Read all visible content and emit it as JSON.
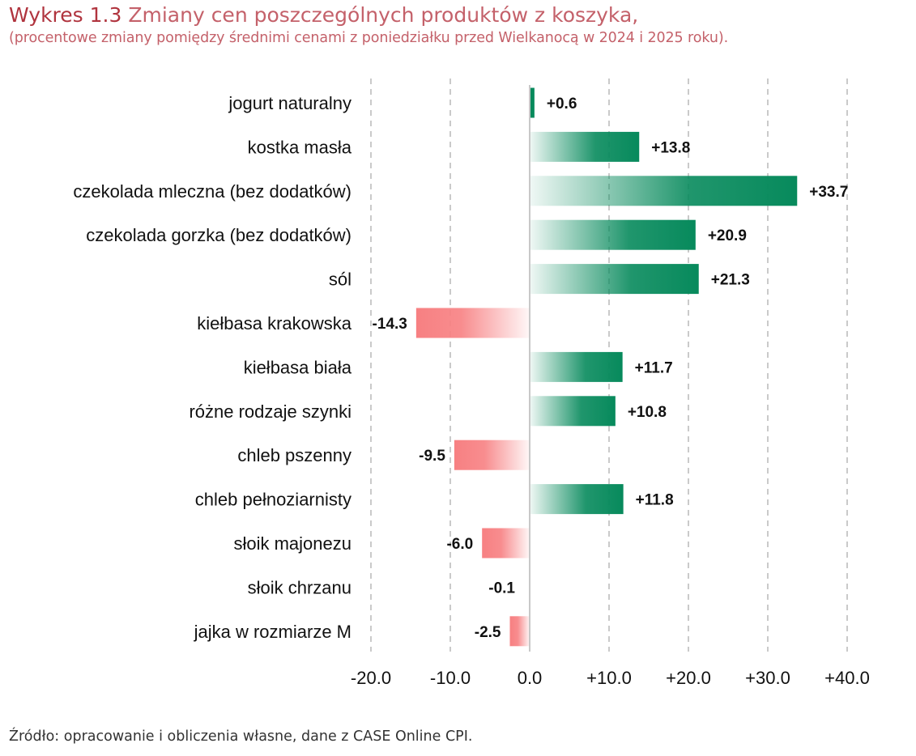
{
  "header": {
    "title_lead": "Wykres 1.3",
    "title_rest": "Zmiany cen poszczególnych produktów z koszyka,",
    "subtitle": "(procentowe zmiany pomiędzy średnimi cenami z poniedziałku przed Wielkanocą w 2024 i 2025 roku)."
  },
  "footer": {
    "source": "Źródło: opracowanie i obliczenia własne, dane z CASE Online CPI."
  },
  "colors": {
    "positive": "#078a5c",
    "negative": "#f78082",
    "gridline": "#bdbdbd",
    "title": "#c4616a"
  },
  "chart_data": {
    "type": "bar",
    "orientation": "horizontal",
    "title": "Wykres 1.3 Zmiany cen poszczególnych produktów z koszyka,",
    "subtitle": "(procentowe zmiany pomiędzy średnimi cenami z poniedziałku przed Wielkanocą w 2024 i 2025 roku).",
    "xlabel": "",
    "ylabel": "",
    "xlim": [
      -20,
      40
    ],
    "grid": true,
    "categories": [
      "jogurt naturalny",
      "kostka masła",
      "czekolada mleczna (bez dodatków)",
      "czekolada gorzka (bez dodatków)",
      "sól",
      "kiełbasa krakowska",
      "kiełbasa biała",
      "różne rodzaje szynki",
      "chleb pszenny",
      "chleb pełnoziarnisty",
      "słoik majonezu",
      "słoik chrzanu",
      "jajka w rozmiarze M"
    ],
    "values": [
      0.6,
      13.8,
      33.7,
      20.9,
      21.3,
      -14.3,
      11.7,
      10.8,
      -9.5,
      11.8,
      -6.0,
      -0.1,
      -2.5
    ],
    "value_labels": [
      "+0.6",
      "+13.8",
      "+33.7",
      "+20.9",
      "+21.3",
      "-14.3",
      "+11.7",
      "+10.8",
      "-9.5",
      "+11.8",
      "-6.0",
      "-0.1",
      "-2.5"
    ],
    "ticks": [
      -20,
      -10,
      0,
      10,
      20,
      30,
      40
    ],
    "tick_labels": [
      "-20.0",
      "-10.0",
      "0.0",
      "+10.0",
      "+20.0",
      "+30.0",
      "+40.0"
    ]
  }
}
